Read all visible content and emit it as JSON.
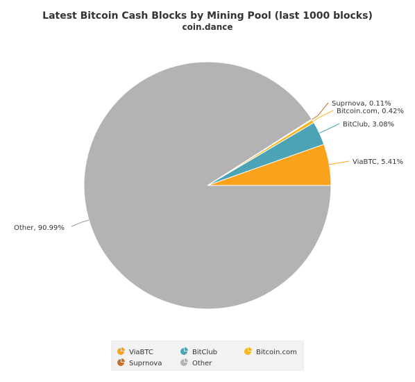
{
  "chart_data": {
    "type": "pie",
    "title": "Latest Bitcoin Cash Blocks by Mining Pool (last 1000 blocks)",
    "subtitle": "coin.dance",
    "slices": [
      {
        "name": "ViaBTC",
        "value": 5.41,
        "label": "ViaBTC, 5.41%",
        "color": "#FAA21B"
      },
      {
        "name": "BitClub",
        "value": 3.08,
        "label": "BitClub, 3.08%",
        "color": "#4BA3B5"
      },
      {
        "name": "Bitcoin.com",
        "value": 0.42,
        "label": "Bitcoin.com, 0.42%",
        "color": "#F9B51F"
      },
      {
        "name": "Suprnova",
        "value": 0.11,
        "label": "Suprnova, 0.11%",
        "color": "#C8702A"
      },
      {
        "name": "Other",
        "value": 90.99,
        "label": "Other, 90.99%",
        "color": "#B3B3B3"
      }
    ],
    "legend": {
      "placement": "bottom",
      "items": [
        "ViaBTC",
        "BitClub",
        "Bitcoin.com",
        "Suprnova",
        "Other"
      ]
    }
  }
}
